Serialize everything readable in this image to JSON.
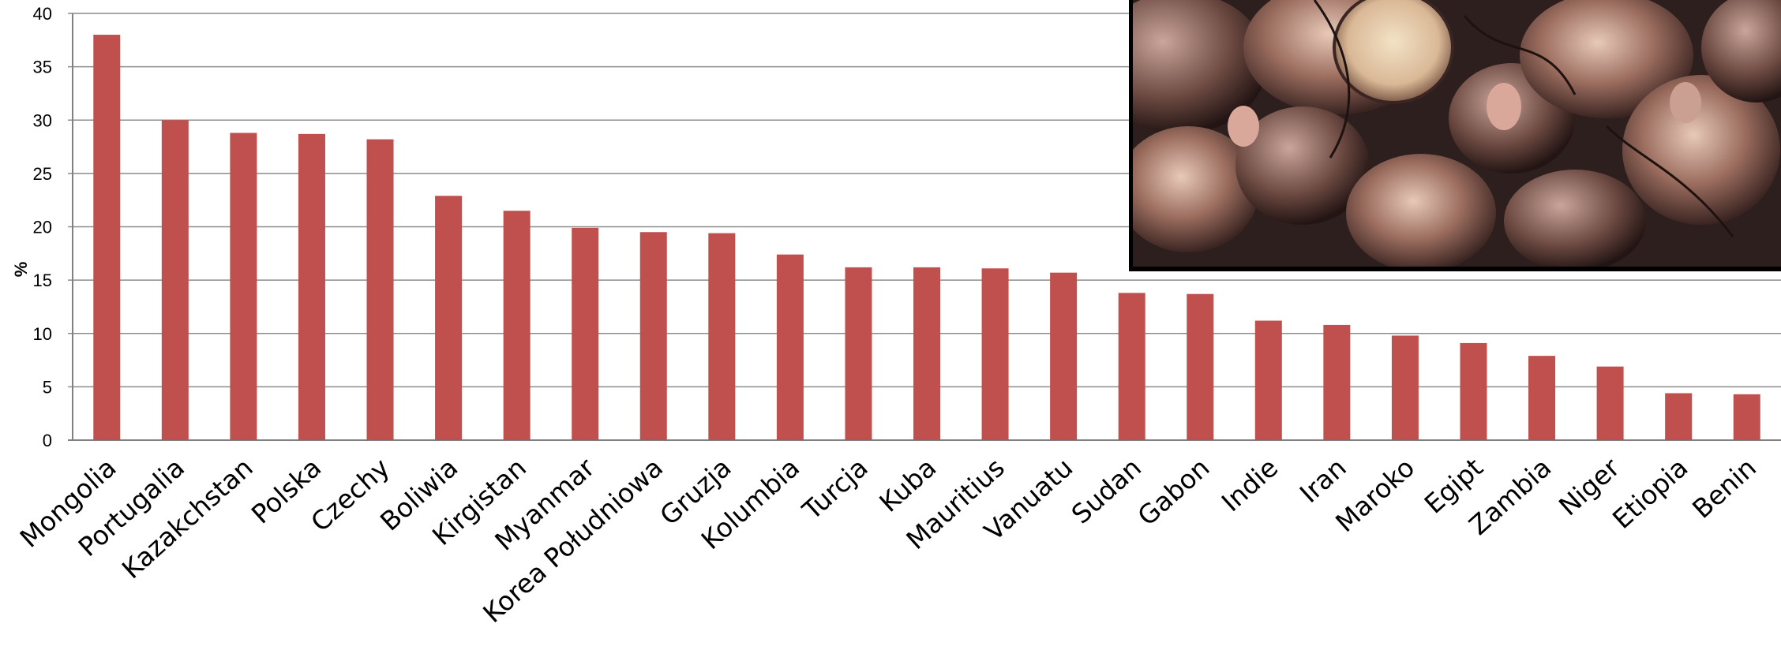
{
  "chart_data": {
    "type": "bar",
    "title": "",
    "xlabel": "",
    "ylabel": "%",
    "ylim": [
      0,
      40
    ],
    "yticks": [
      0,
      5,
      10,
      15,
      20,
      25,
      30,
      35,
      40
    ],
    "grid": true,
    "legend": "none",
    "bar_color": "#c0504d",
    "categories": [
      "Mongolia",
      "Portugalia",
      "Kazakchstan",
      "Polska",
      "Czechy",
      "Boliwia",
      "Kirgistan",
      "Myanmar",
      "Korea Południowa",
      "Gruzja",
      "Kolumbia",
      "Turcja",
      "Kuba",
      "Mauritius",
      "Vanuatu",
      "Sudan",
      "Gabon",
      "Indie",
      "Iran",
      "Maroko",
      "Egipt",
      "Zambia",
      "Niger",
      "Etiopia",
      "Benin"
    ],
    "values": [
      38.0,
      30.0,
      28.8,
      28.7,
      28.2,
      22.9,
      21.5,
      19.9,
      19.5,
      19.4,
      17.4,
      16.2,
      16.2,
      16.1,
      15.7,
      13.8,
      13.7,
      11.2,
      10.8,
      9.8,
      9.1,
      7.9,
      6.9,
      4.4,
      4.3
    ]
  },
  "photo": {
    "icon": "food-photo-icon"
  }
}
